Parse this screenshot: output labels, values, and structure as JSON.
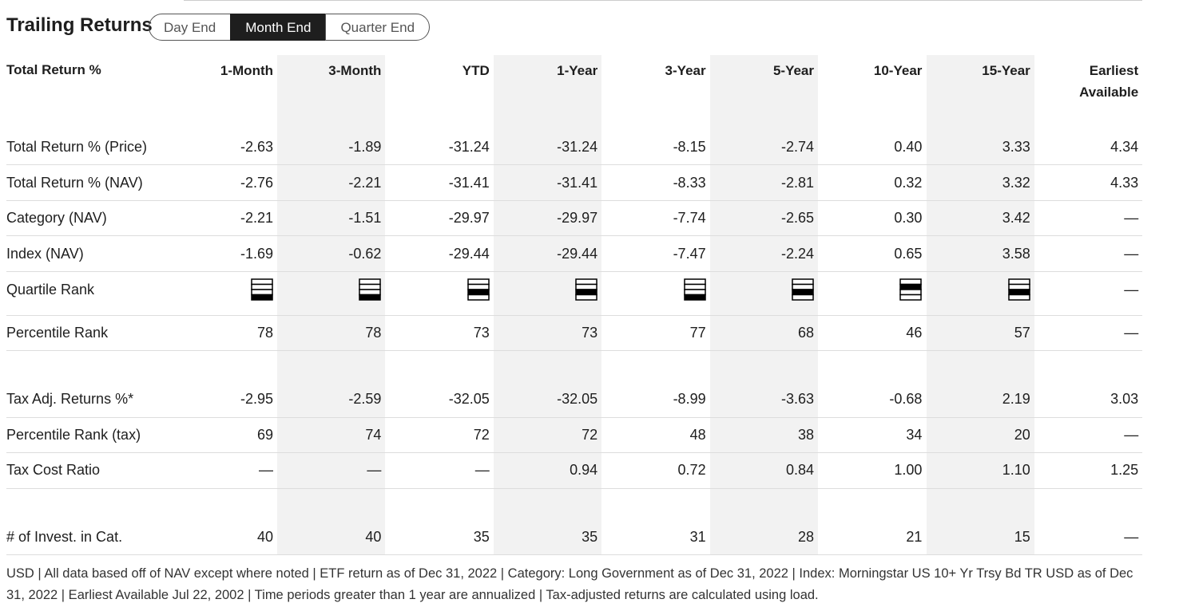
{
  "header": {
    "title": "Trailing Returns",
    "tabs": [
      "Day End",
      "Month End",
      "Quarter End"
    ],
    "active_tab": 1
  },
  "table": {
    "columns": [
      "Total Return %",
      "1-Month",
      "3-Month",
      "YTD",
      "1-Year",
      "3-Year",
      "5-Year",
      "10-Year",
      "15-Year",
      "Earliest Available"
    ],
    "rows": [
      {
        "label": "Total Return % (Price)",
        "cells": [
          "-2.63",
          "-1.89",
          "-31.24",
          "-31.24",
          "-8.15",
          "-2.74",
          "0.40",
          "3.33",
          "4.34"
        ]
      },
      {
        "label": "Total Return % (NAV)",
        "cells": [
          "-2.76",
          "-2.21",
          "-31.41",
          "-31.41",
          "-8.33",
          "-2.81",
          "0.32",
          "3.32",
          "4.33"
        ]
      },
      {
        "label": "Category (NAV)",
        "cells": [
          "-2.21",
          "-1.51",
          "-29.97",
          "-29.97",
          "-7.74",
          "-2.65",
          "0.30",
          "3.42",
          "—"
        ]
      },
      {
        "label": "Index (NAV)",
        "cells": [
          "-1.69",
          "-0.62",
          "-29.44",
          "-29.44",
          "-7.47",
          "-2.24",
          "0.65",
          "3.58",
          "—"
        ]
      },
      {
        "label": "Quartile Rank",
        "cells": [
          4,
          4,
          3,
          3,
          4,
          3,
          2,
          3,
          "—"
        ]
      },
      {
        "label": "Percentile Rank",
        "cells": [
          "78",
          "78",
          "73",
          "73",
          "77",
          "68",
          "46",
          "57",
          "—"
        ]
      },
      {
        "label": "Tax Adj. Returns %*",
        "cells": [
          "-2.95",
          "-2.59",
          "-32.05",
          "-32.05",
          "-8.99",
          "-3.63",
          "-0.68",
          "2.19",
          "3.03"
        ]
      },
      {
        "label": "Percentile Rank (tax)",
        "cells": [
          "69",
          "74",
          "72",
          "72",
          "48",
          "38",
          "34",
          "20",
          "—"
        ]
      },
      {
        "label": "Tax Cost Ratio",
        "cells": [
          "—",
          "—",
          "—",
          "0.94",
          "0.72",
          "0.84",
          "1.00",
          "1.10",
          "1.25"
        ]
      },
      {
        "label": "# of Invest. in Cat.",
        "cells": [
          "40",
          "40",
          "35",
          "35",
          "31",
          "28",
          "21",
          "15",
          "—"
        ]
      }
    ]
  },
  "footer": "USD | All data based off of NAV except where noted | ETF return as of Dec 31, 2022 |  Category: Long Government as of Dec 31, 2022 |  Index: Morningstar US 10+ Yr Trsy Bd TR USD as of Dec 31, 2022 |  Earliest Available Jul 22, 2002 | Time periods greater than 1 year are annualized  | Tax-adjusted returns are calculated using load."
}
